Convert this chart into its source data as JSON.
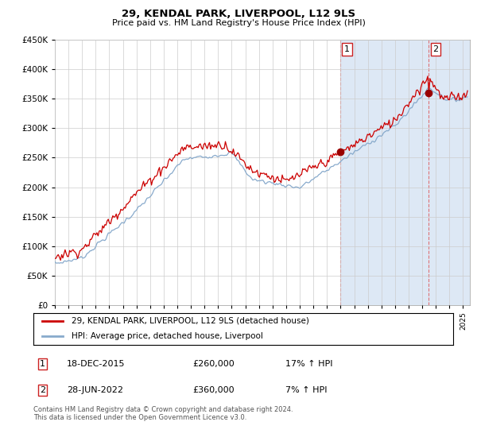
{
  "title": "29, KENDAL PARK, LIVERPOOL, L12 9LS",
  "subtitle": "Price paid vs. HM Land Registry's House Price Index (HPI)",
  "ylim": [
    0,
    450000
  ],
  "xlim_start": 1995.0,
  "xlim_end": 2025.5,
  "marker1_x": 2015.96,
  "marker1_y": 260000,
  "marker2_x": 2022.49,
  "marker2_y": 360000,
  "legend_line1": "29, KENDAL PARK, LIVERPOOL, L12 9LS (detached house)",
  "legend_line2": "HPI: Average price, detached house, Liverpool",
  "annotation1_date": "18-DEC-2015",
  "annotation1_price": "£260,000",
  "annotation1_hpi": "17% ↑ HPI",
  "annotation2_date": "28-JUN-2022",
  "annotation2_price": "£360,000",
  "annotation2_hpi": "7% ↑ HPI",
  "footer": "Contains HM Land Registry data © Crown copyright and database right 2024.\nThis data is licensed under the Open Government Licence v3.0.",
  "line_color_red": "#cc0000",
  "line_color_blue": "#88aacc",
  "shade_color": "#dde8f5",
  "bg_color": "#ffffff",
  "grid_color": "#cccccc",
  "dashed_color": "#dd5555"
}
